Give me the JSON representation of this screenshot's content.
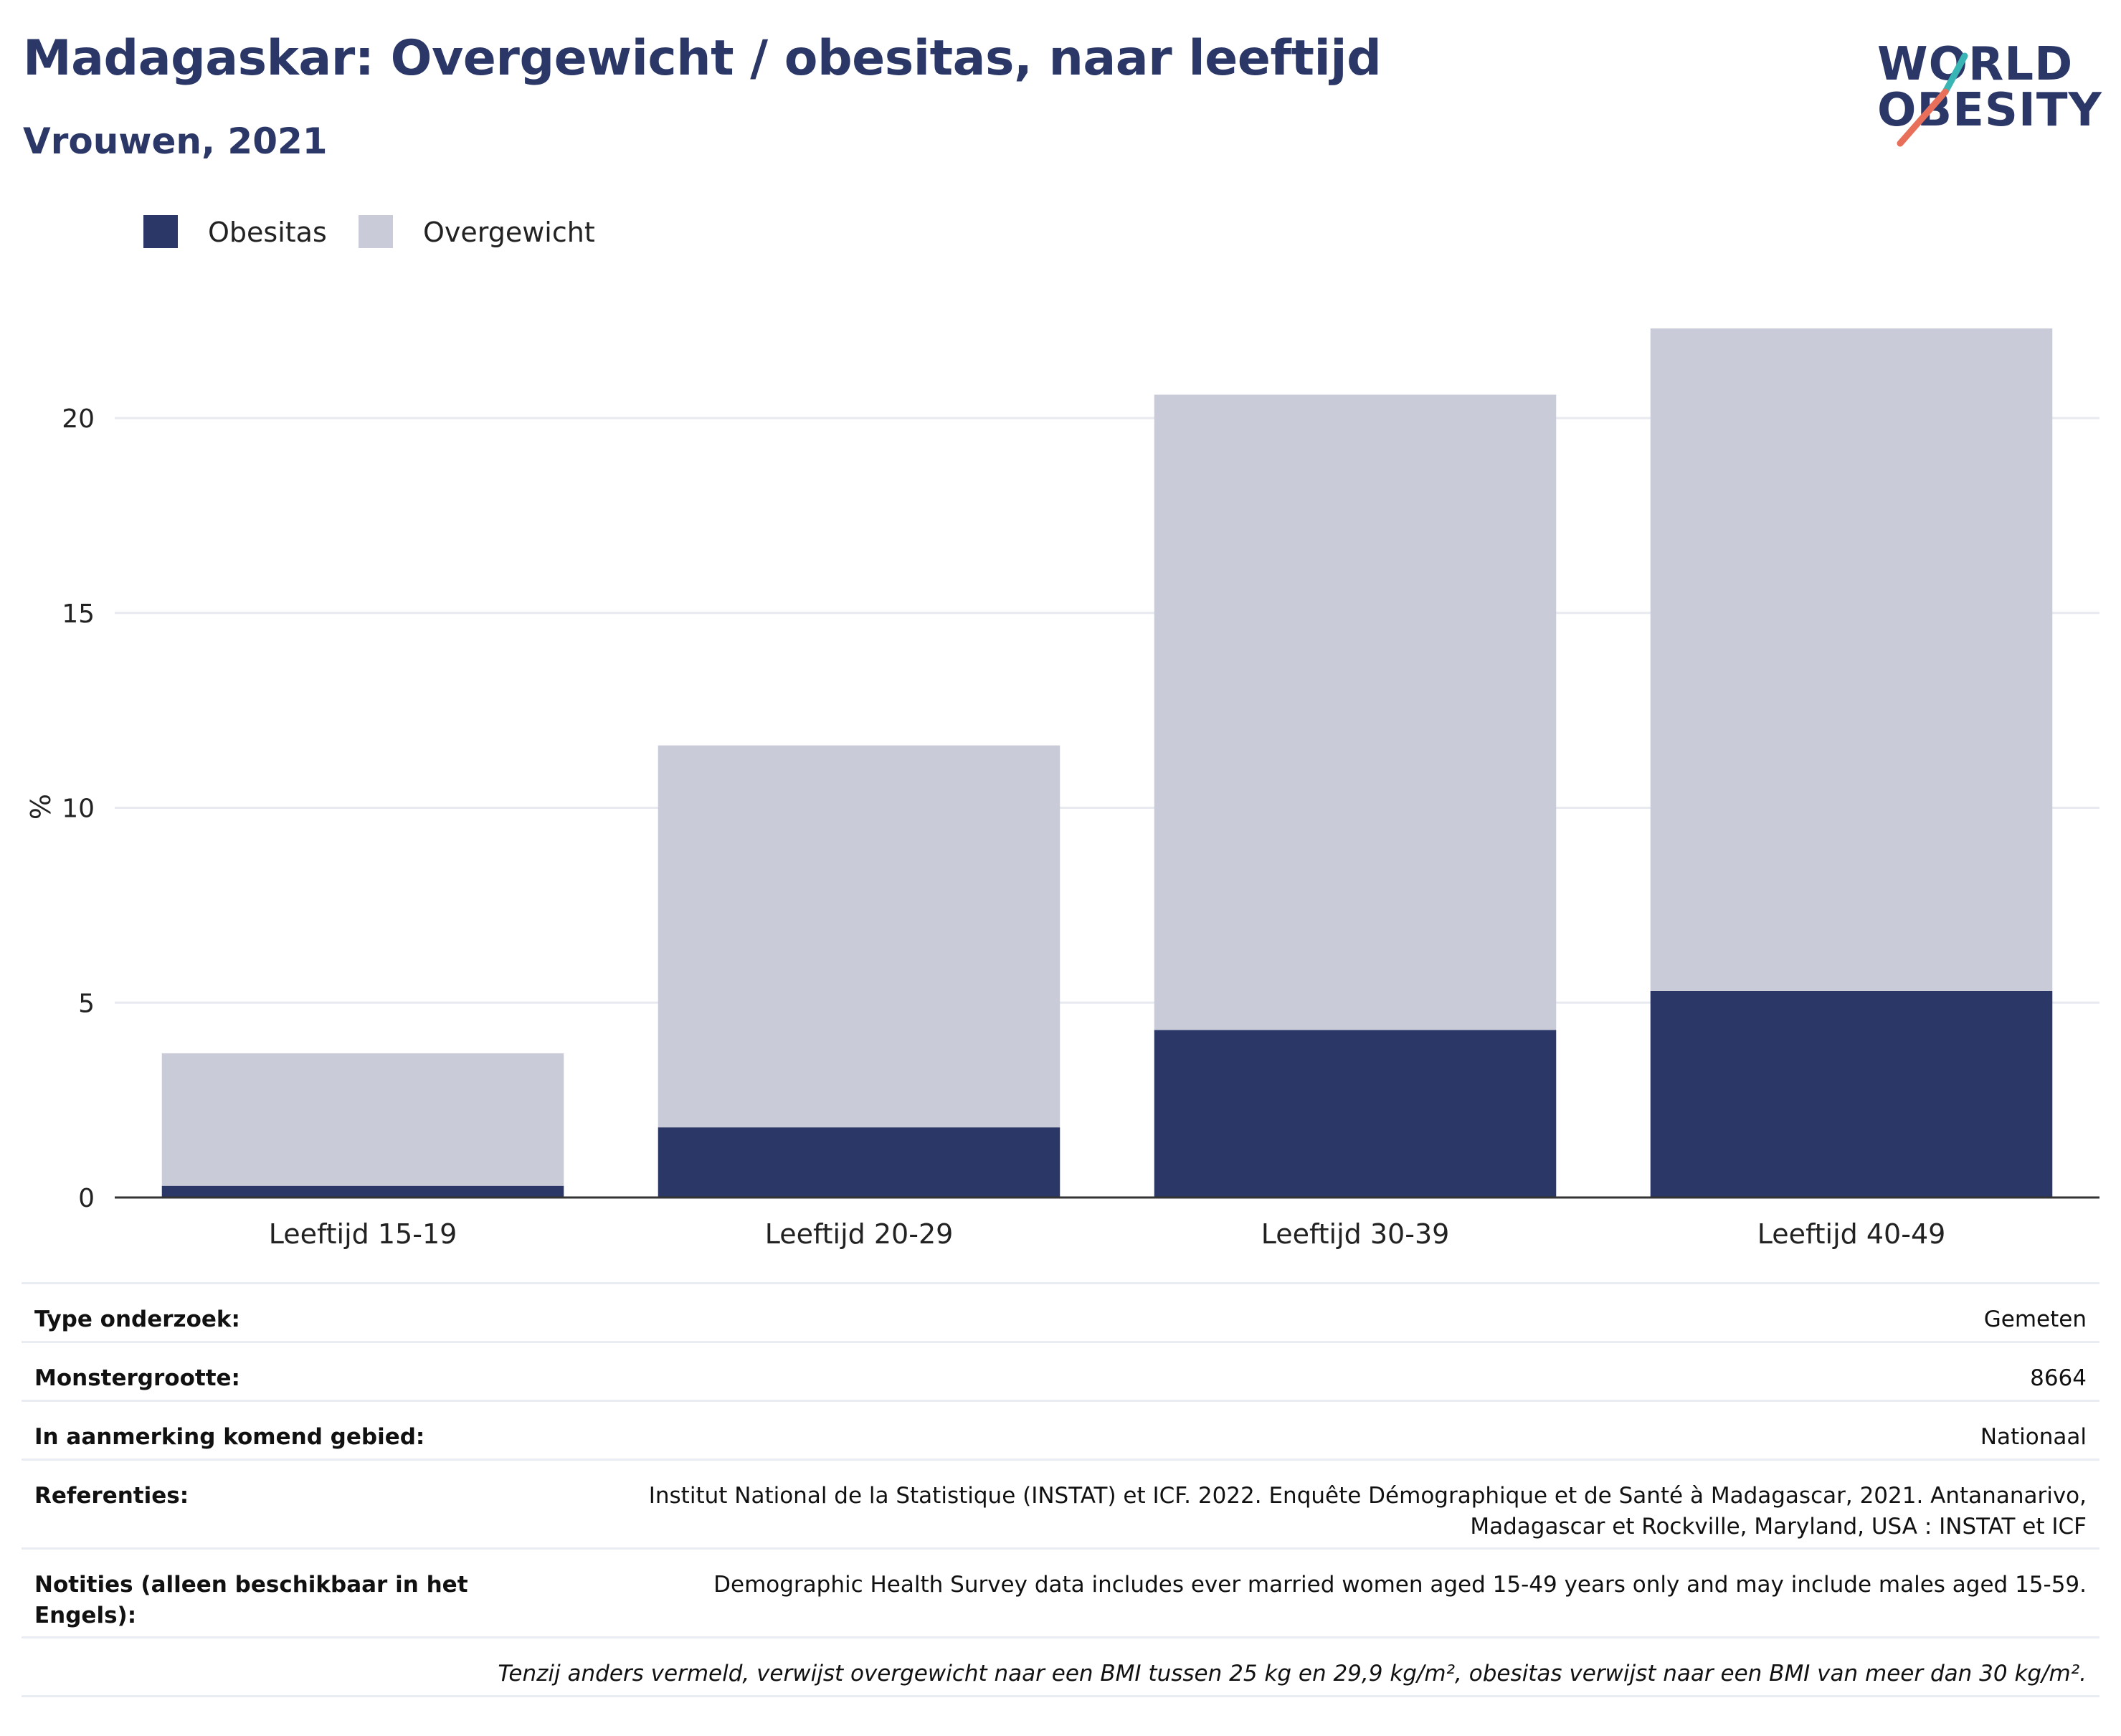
{
  "title": "Madagaskar: Overgewicht / obesitas, naar leeftijd",
  "subtitle": "Vrouwen, 2021",
  "logo": {
    "line1": "WORLD",
    "line2": "OBESITY"
  },
  "colors": {
    "obesitas": "#2b3766",
    "overgewicht": "#c9ccd8",
    "title": "#2b3766",
    "logo_teal": "#3ab5b5",
    "logo_coral": "#e8705b"
  },
  "chart_data": {
    "type": "bar",
    "stacked": true,
    "categories": [
      "Leeftijd 15-19",
      "Leeftijd 20-29",
      "Leeftijd 30-39",
      "Leeftijd 40-49"
    ],
    "series": [
      {
        "name": "Obesitas",
        "values": [
          0.3,
          1.8,
          4.3,
          5.3
        ],
        "color": "#2b3766"
      },
      {
        "name": "Overgewicht",
        "values": [
          3.4,
          9.8,
          16.3,
          17.0
        ],
        "color": "#c9ccd8"
      }
    ],
    "ylabel": "%",
    "yticks": [
      0,
      5,
      10,
      15,
      20
    ],
    "ylim": [
      0,
      23
    ],
    "grid": true,
    "legend": "top-left"
  },
  "footer": {
    "rows": [
      {
        "label": "Type onderzoek:",
        "value": "Gemeten"
      },
      {
        "label": "Monstergrootte:",
        "value": "8664"
      },
      {
        "label": "In aanmerking komend gebied:",
        "value": "Nationaal"
      },
      {
        "label": "Referenties:",
        "value": "Institut National de la Statistique (INSTAT) et ICF. 2022. Enquête Démographique et de Santé à Madagascar, 2021. Antananarivo, Madagascar et Rockville, Maryland, USA : INSTAT et ICF"
      },
      {
        "label": "Notities (alleen beschikbaar in het Engels):",
        "value": "Demographic Health Survey data includes ever married women aged 15-49 years only and may include males aged 15-59."
      }
    ],
    "note": "Tenzij anders vermeld, verwijst overgewicht naar een BMI tussen 25 kg en 29,9 kg/m², obesitas verwijst naar een BMI van meer dan 30 kg/m²."
  }
}
